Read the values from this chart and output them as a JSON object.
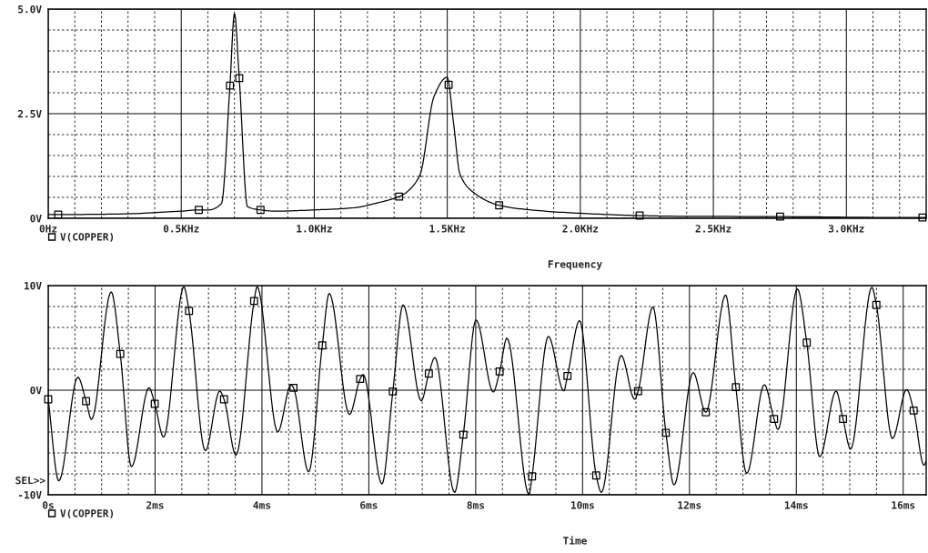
{
  "chart_data": [
    {
      "type": "line",
      "xlabel": "Frequency",
      "legend": "bottom left",
      "grid": true,
      "xlim": [
        0,
        3.3
      ],
      "ylim": [
        0,
        5
      ],
      "xticks": [
        {
          "value": 0,
          "label": "0Hz"
        },
        {
          "value": 0.1,
          "label": null
        },
        {
          "value": 0.2,
          "label": null
        },
        {
          "value": 0.3,
          "label": null
        },
        {
          "value": 0.4,
          "label": null
        },
        {
          "value": 0.5,
          "label": "0.5KHz"
        },
        {
          "value": 0.6,
          "label": null
        },
        {
          "value": 0.7,
          "label": null
        },
        {
          "value": 0.8,
          "label": null
        },
        {
          "value": 0.9,
          "label": null
        },
        {
          "value": 1.0,
          "label": "1.0KHz"
        },
        {
          "value": 1.1,
          "label": null
        },
        {
          "value": 1.2,
          "label": null
        },
        {
          "value": 1.3,
          "label": null
        },
        {
          "value": 1.4,
          "label": null
        },
        {
          "value": 1.5,
          "label": "1.5KHz"
        },
        {
          "value": 1.6,
          "label": null
        },
        {
          "value": 1.7,
          "label": null
        },
        {
          "value": 1.8,
          "label": null
        },
        {
          "value": 1.9,
          "label": null
        },
        {
          "value": 2.0,
          "label": "2.0KHz"
        },
        {
          "value": 2.1,
          "label": null
        },
        {
          "value": 2.2,
          "label": null
        },
        {
          "value": 2.3,
          "label": null
        },
        {
          "value": 2.4,
          "label": null
        },
        {
          "value": 2.5,
          "label": "2.5KHz"
        },
        {
          "value": 2.6,
          "label": null
        },
        {
          "value": 2.7,
          "label": null
        },
        {
          "value": 2.8,
          "label": null
        },
        {
          "value": 2.9,
          "label": null
        },
        {
          "value": 3.0,
          "label": "3.0KHz"
        },
        {
          "value": 3.1,
          "label": null
        },
        {
          "value": 3.2,
          "label": null
        }
      ],
      "yticks": [
        {
          "value": 0,
          "label": "0V"
        },
        {
          "value": 0.5,
          "label": null
        },
        {
          "value": 1,
          "label": null
        },
        {
          "value": 1.5,
          "label": null
        },
        {
          "value": 2,
          "label": null
        },
        {
          "value": 2.5,
          "label": "2.5V"
        },
        {
          "value": 3,
          "label": null
        },
        {
          "value": 3.5,
          "label": null
        },
        {
          "value": 4,
          "label": null
        },
        {
          "value": 4.5,
          "label": null
        },
        {
          "value": 5,
          "label": "5.0V"
        }
      ],
      "series": [
        {
          "name": "V(COPPER)",
          "color": "#000000",
          "x": [
            0,
            0.0375,
            0.251,
            0.5,
            0.566,
            0.602,
            0.651,
            0.683,
            0.7,
            0.718,
            0.749,
            0.798,
            0.853,
            1.0,
            1.148,
            1.239,
            1.319,
            1.342,
            1.397,
            1.45,
            1.499,
            1.524,
            1.547,
            1.598,
            1.695,
            1.797,
            1.997,
            2.223,
            2.342,
            2.751,
            3.189,
            3.286,
            3.297
          ],
          "values": [
            0.09,
            0.09,
            0.1,
            0.17,
            0.2,
            0.2,
            0.35,
            3.17,
            4.89,
            3.35,
            0.28,
            0.2,
            0.17,
            0.2,
            0.25,
            0.37,
            0.52,
            0.6,
            1.03,
            2.91,
            3.37,
            2.25,
            1.07,
            0.62,
            0.31,
            0.21,
            0.12,
            0.065,
            0.05,
            0.04,
            0.02,
            0.02,
            0.02
          ]
        },
        {
          "type": "scatter",
          "marker": "square",
          "color": "#000000",
          "x": [
            0.0375,
            0.566,
            0.683,
            0.718,
            0.798,
            1.319,
            1.505,
            1.695,
            2.223,
            2.751,
            3.286
          ],
          "values": [
            0.09,
            0.2,
            3.17,
            3.35,
            0.2,
            0.52,
            3.19,
            0.31,
            0.065,
            0.04,
            0.02
          ]
        }
      ]
    },
    {
      "type": "line",
      "xlabel": "Time",
      "legend": "bottom left",
      "grid": true,
      "xlim": [
        0,
        16.43
      ],
      "ylim": [
        -10,
        10
      ],
      "annotations": [
        "SEL>>"
      ],
      "xticks": [
        {
          "value": 0,
          "label": "0s"
        },
        {
          "value": 0.5,
          "label": null
        },
        {
          "value": 1,
          "label": null
        },
        {
          "value": 1.5,
          "label": null
        },
        {
          "value": 2,
          "label": "2ms"
        },
        {
          "value": 2.5,
          "label": null
        },
        {
          "value": 3,
          "label": null
        },
        {
          "value": 3.5,
          "label": null
        },
        {
          "value": 4,
          "label": "4ms"
        },
        {
          "value": 4.5,
          "label": null
        },
        {
          "value": 5,
          "label": null
        },
        {
          "value": 5.5,
          "label": null
        },
        {
          "value": 6,
          "label": "6ms"
        },
        {
          "value": 6.5,
          "label": null
        },
        {
          "value": 7,
          "label": null
        },
        {
          "value": 7.5,
          "label": null
        },
        {
          "value": 8,
          "label": "8ms"
        },
        {
          "value": 8.5,
          "label": null
        },
        {
          "value": 9,
          "label": null
        },
        {
          "value": 9.5,
          "label": null
        },
        {
          "value": 10,
          "label": "10ms"
        },
        {
          "value": 10.5,
          "label": null
        },
        {
          "value": 11,
          "label": null
        },
        {
          "value": 11.5,
          "label": null
        },
        {
          "value": 12,
          "label": "12ms"
        },
        {
          "value": 12.5,
          "label": null
        },
        {
          "value": 13,
          "label": null
        },
        {
          "value": 13.5,
          "label": null
        },
        {
          "value": 14,
          "label": "14ms"
        },
        {
          "value": 14.5,
          "label": null
        },
        {
          "value": 15,
          "label": null
        },
        {
          "value": 15.5,
          "label": null
        },
        {
          "value": 16,
          "label": "16ms"
        }
      ],
      "yticks": [
        {
          "value": -10,
          "label": "-10V"
        },
        {
          "value": -8,
          "label": null
        },
        {
          "value": -6,
          "label": null
        },
        {
          "value": -4,
          "label": null
        },
        {
          "value": -2,
          "label": null
        },
        {
          "value": 0,
          "label": "0V"
        },
        {
          "value": 2,
          "label": null
        },
        {
          "value": 4,
          "label": null
        },
        {
          "value": 6,
          "label": null
        },
        {
          "value": 8,
          "label": null
        },
        {
          "value": 10,
          "label": "10V"
        }
      ],
      "series": [
        {
          "name": "V(COPPER)",
          "color": "#000000",
          "x": [
            0,
            0.198,
            0.555,
            0.708,
            0.81,
            1.178,
            1.348,
            1.558,
            1.887,
            1.994,
            2.159,
            2.538,
            2.635,
            2.94,
            3.21,
            3.29,
            3.513,
            3.853,
            3.909,
            4.295,
            4.544,
            4.59,
            4.873,
            5.129,
            5.259,
            5.638,
            5.837,
            5.893,
            6.245,
            6.449,
            6.641,
            6.981,
            7.123,
            7.236,
            7.604,
            7.768,
            8.006,
            8.329,
            8.448,
            8.584,
            8.998,
            9.054,
            9.36,
            9.649,
            9.717,
            9.944,
            10.255,
            10.352,
            10.721,
            10.976,
            11.039,
            11.316,
            11.559,
            11.712,
            12.07,
            12.306,
            12.676,
            12.868,
            13.072,
            13.401,
            13.583,
            13.656,
            14.019,
            14.195,
            14.438,
            14.744,
            14.874,
            15.016,
            15.413,
            15.498,
            15.798,
            16.065,
            16.196,
            16.389,
            16.43
          ],
          "values": [
            -0.87,
            -8.67,
            1.24,
            -1.04,
            -2.8,
            9.39,
            3.47,
            -7.31,
            0.23,
            -1.3,
            -4.48,
            9.88,
            7.57,
            -5.78,
            -0.09,
            -0.87,
            -6.21,
            8.53,
            9.88,
            -3.99,
            0.52,
            0.23,
            -7.8,
            4.28,
            9.25,
            -2.31,
            1.07,
            1.5,
            -8.96,
            -0.12,
            8.15,
            -1.01,
            1.59,
            3.12,
            -9.77,
            -4.25,
            6.71,
            -0.17,
            1.79,
            4.97,
            -9.97,
            -8.24,
            5.14,
            -0.06,
            1.36,
            6.65,
            -8.15,
            -9.77,
            3.32,
            -0.87,
            -0.09,
            7.95,
            -4.08,
            -9.05,
            1.68,
            -2.11,
            9.1,
            0.29,
            -7.95,
            0.52,
            -2.75,
            -3.76,
            9.68,
            4.54,
            -6.36,
            -0.09,
            -2.75,
            -5.64,
            9.83,
            8.15,
            -4.62,
            0.06,
            -1.94,
            -7.17,
            -6.79
          ]
        },
        {
          "type": "scatter",
          "marker": "square",
          "color": "#000000",
          "x": [
            0,
            0.708,
            1.348,
            1.994,
            2.635,
            3.29,
            3.853,
            4.59,
            5.129,
            5.837,
            6.449,
            7.123,
            7.768,
            8.448,
            9.054,
            9.717,
            10.255,
            11.039,
            11.559,
            12.306,
            12.868,
            13.583,
            14.195,
            14.874,
            15.498,
            16.196
          ],
          "values": [
            -0.87,
            -1.04,
            3.47,
            -1.3,
            7.57,
            -0.87,
            8.53,
            0.23,
            4.28,
            1.07,
            -0.12,
            1.59,
            -4.25,
            1.79,
            -8.24,
            1.36,
            -8.15,
            -0.09,
            -4.08,
            -2.11,
            0.29,
            -2.75,
            4.54,
            -2.75,
            8.15,
            -1.94
          ]
        }
      ]
    }
  ]
}
